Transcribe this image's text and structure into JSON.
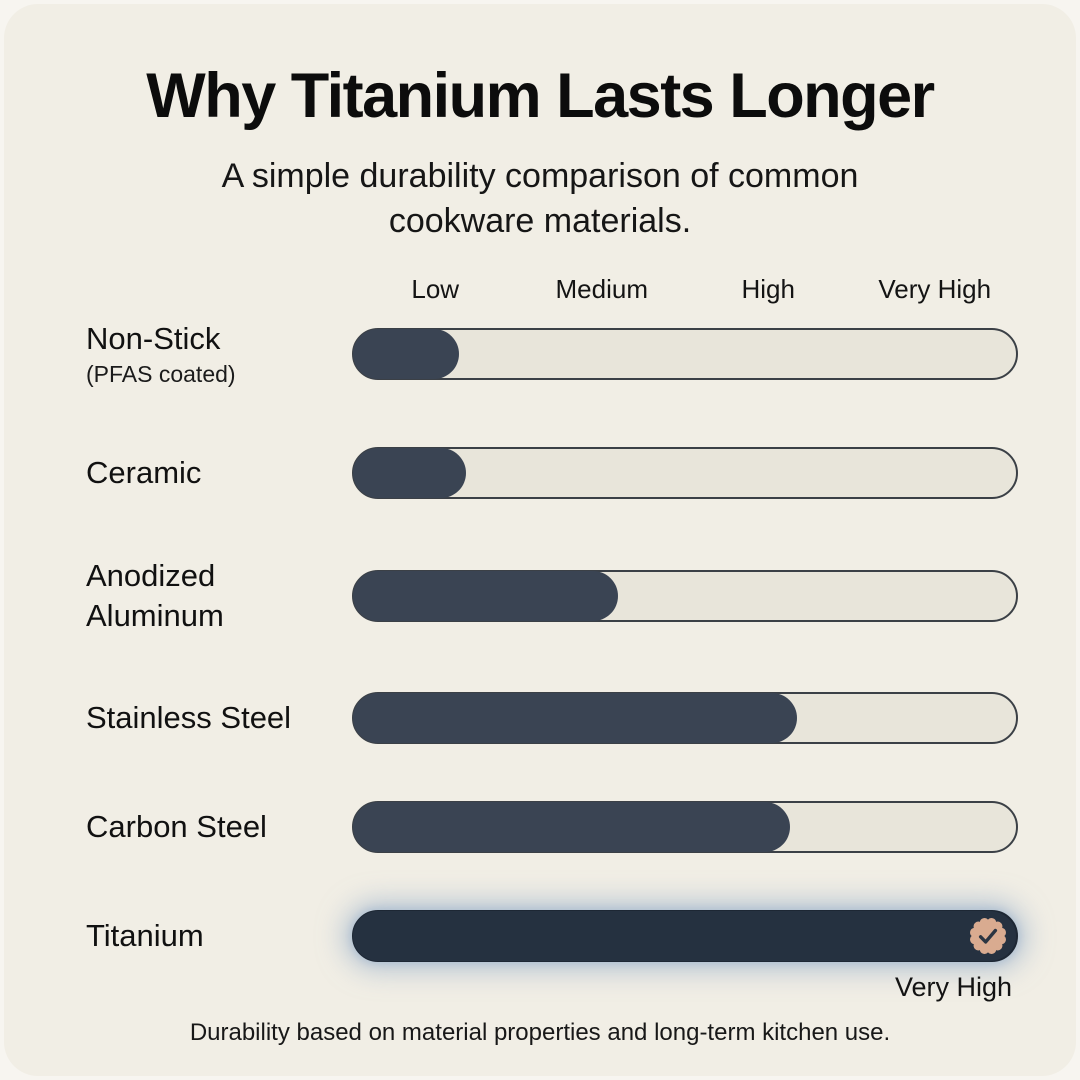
{
  "header": {
    "title": "Why Titanium Lasts Longer",
    "subtitle": "A simple durability comparison of common cookware materials."
  },
  "footnote": "Durability based on material properties and long-term kitchen use.",
  "colors": {
    "bg_card": "#f1eee5",
    "bar_fill": "#3a4453",
    "titanium_fill": "#253140",
    "track": "#e8e5da",
    "track_border": "#3b4046",
    "badge": "#d9ab90",
    "glow": "#8aa6c6"
  },
  "chart_data": {
    "type": "bar",
    "orientation": "horizontal",
    "title": "Why Titanium Lasts Longer",
    "subtitle": "A simple durability comparison of common cookware materials.",
    "scale_labels": [
      "Low",
      "Medium",
      "High",
      "Very High"
    ],
    "xlim_pct": [
      0,
      100
    ],
    "grid": false,
    "rows": [
      {
        "label": "Non-Stick",
        "sublabel": "(PFAS coated)",
        "rating": "Low",
        "value_pct": 16,
        "highlight": false
      },
      {
        "label": "Ceramic",
        "rating": "Low",
        "value_pct": 17,
        "highlight": false
      },
      {
        "label": "Anodized Aluminum",
        "rating": "Medium",
        "value_pct": 40,
        "highlight": false
      },
      {
        "label": "Stainless Steel",
        "rating": "High",
        "value_pct": 67,
        "highlight": false
      },
      {
        "label": "Carbon Steel",
        "rating": "High",
        "value_pct": 66,
        "highlight": false
      },
      {
        "label": "Titanium",
        "rating": "Very High",
        "value_pct": 100,
        "highlight": true,
        "badge": "check-seal",
        "caption": "Very High"
      }
    ],
    "footnote": "Durability based on material properties and long-term kitchen use."
  }
}
